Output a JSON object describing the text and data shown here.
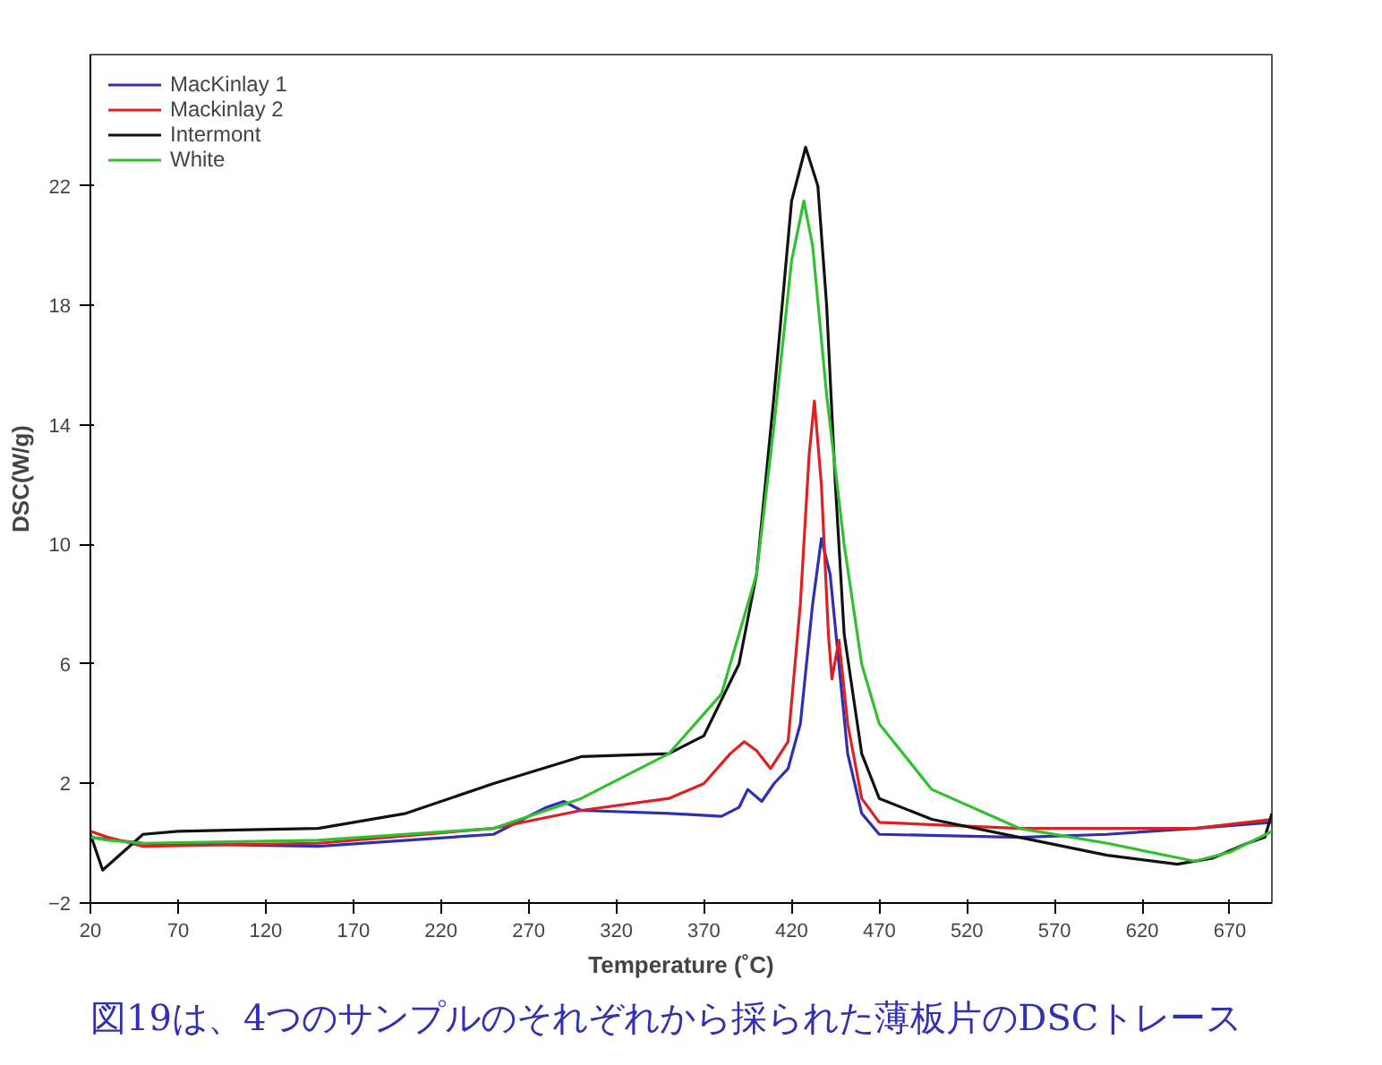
{
  "chart_data": {
    "type": "line",
    "xlabel": "Temperature (˚C)",
    "ylabel": "DSC(W/g)",
    "xlim": [
      20,
      694
    ],
    "ylim": [
      -2,
      26.4
    ],
    "xticks": [
      20,
      70,
      120,
      170,
      220,
      270,
      320,
      370,
      420,
      470,
      520,
      570,
      620,
      670
    ],
    "yticks": [
      -2,
      2,
      6,
      10,
      14,
      18,
      22
    ],
    "grid": false,
    "legend": "top left",
    "line_style": "solid",
    "annotations": [
      "図19は、4つのサンプルのそれぞれから採られた薄板片のDSCトレース"
    ],
    "series": [
      {
        "name": "MacKinlay 1",
        "color": "#2f2fb0",
        "x": [
          20,
          50,
          150,
          250,
          280,
          290,
          300,
          350,
          380,
          390,
          395,
          403,
          410,
          418,
          425,
          432,
          437,
          442,
          447,
          452,
          460,
          470,
          550,
          600,
          650,
          694
        ],
        "values": [
          0.2,
          0,
          -0.1,
          0.3,
          1.2,
          1.4,
          1.1,
          1.0,
          0.9,
          1.2,
          1.8,
          1.4,
          2.0,
          2.5,
          4,
          8,
          10.2,
          9,
          6,
          3,
          1.0,
          0.3,
          0.2,
          0.3,
          0.5,
          0.7
        ]
      },
      {
        "name": "Mackinlay 2",
        "color": "#e02020",
        "x": [
          20,
          30,
          50,
          150,
          250,
          300,
          350,
          370,
          385,
          393,
          400,
          408,
          418,
          425,
          430,
          433,
          437,
          441,
          443,
          447,
          452,
          460,
          470,
          550,
          600,
          650,
          694
        ],
        "values": [
          0.4,
          0.2,
          -0.1,
          0.0,
          0.5,
          1.1,
          1.5,
          2.0,
          3.0,
          3.4,
          3.1,
          2.5,
          3.4,
          8,
          13,
          14.8,
          12,
          7,
          5.5,
          6.8,
          4,
          1.5,
          0.7,
          0.5,
          0.5,
          0.5,
          0.8
        ]
      },
      {
        "name": "Intermont",
        "color": "#111111",
        "x": [
          20,
          27,
          50,
          70,
          150,
          200,
          250,
          300,
          350,
          370,
          390,
          400,
          410,
          420,
          428,
          435,
          440,
          445,
          450,
          460,
          470,
          500,
          550,
          600,
          640,
          660,
          680,
          690,
          694
        ],
        "values": [
          0.3,
          -0.9,
          0.3,
          0.4,
          0.5,
          1.0,
          2.0,
          2.9,
          3.0,
          3.6,
          6,
          9,
          15,
          21.5,
          23.3,
          22,
          18,
          12,
          7,
          3,
          1.5,
          0.8,
          0.2,
          -0.4,
          -0.7,
          -0.5,
          0,
          0.2,
          1.0
        ]
      },
      {
        "name": "White",
        "color": "#30c030",
        "x": [
          20,
          30,
          50,
          150,
          250,
          300,
          350,
          380,
          400,
          410,
          420,
          427,
          432,
          440,
          450,
          460,
          470,
          500,
          550,
          600,
          650,
          670,
          694
        ],
        "values": [
          0.2,
          0.1,
          0,
          0.1,
          0.5,
          1.5,
          3,
          5,
          9,
          14,
          19.5,
          21.5,
          20,
          15,
          10,
          6,
          4,
          1.8,
          0.5,
          0,
          -0.6,
          -0.3,
          0.4
        ]
      }
    ]
  }
}
